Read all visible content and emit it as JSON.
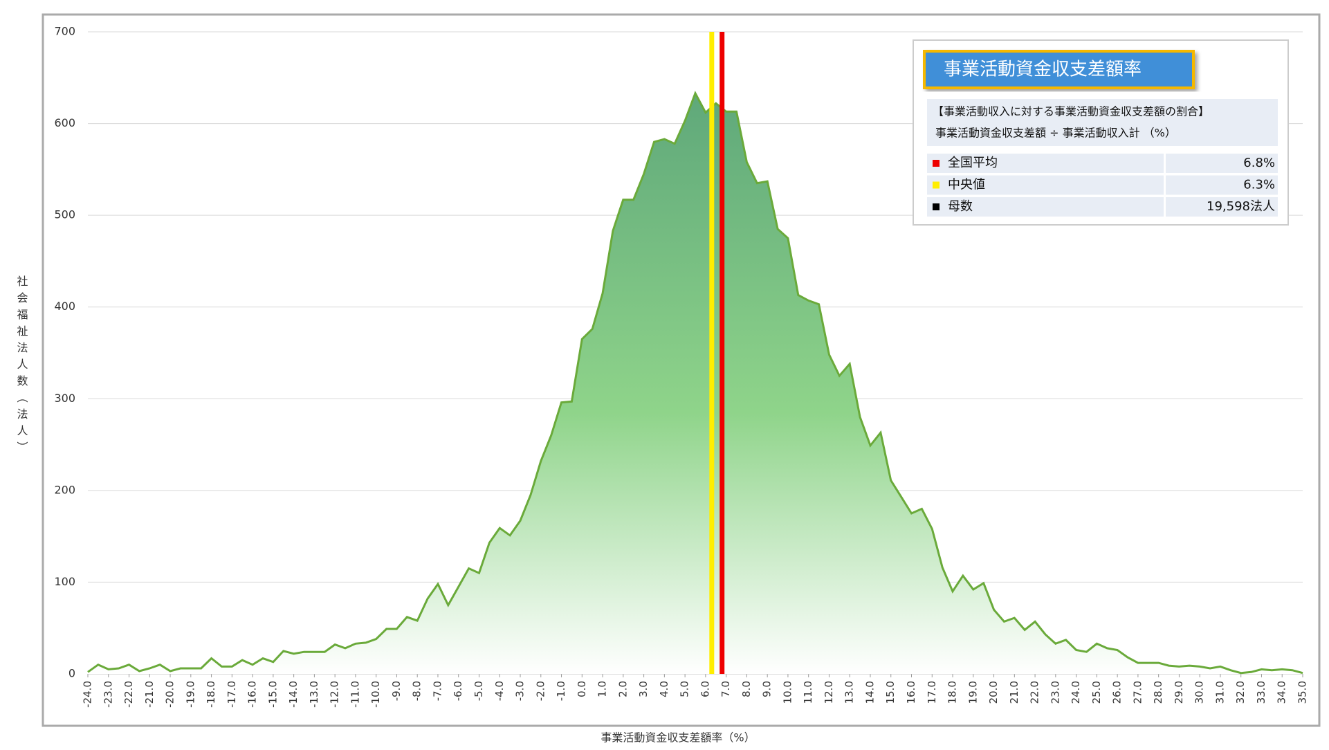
{
  "chart_data": {
    "type": "area",
    "x_label": "事業活動資金収支差額率（%）",
    "y_label": "社会福祉法人数（法人）",
    "x": [
      -24,
      -23.5,
      -23,
      -22.5,
      -22,
      -21.5,
      -21,
      -20.5,
      -20,
      -19.5,
      -19,
      -18.5,
      -18,
      -17.5,
      -17,
      -16.5,
      -16,
      -15.5,
      -15,
      -14.5,
      -14,
      -13.5,
      -13,
      -12.5,
      -12,
      -11.5,
      -11,
      -10.5,
      -10,
      -9.5,
      -9,
      -8.5,
      -8,
      -7.5,
      -7,
      -6.5,
      -6,
      -5.5,
      -5,
      -4.5,
      -4,
      -3.5,
      -3,
      -2.5,
      -2,
      -1.5,
      -1,
      -0.5,
      0,
      0.5,
      1,
      1.5,
      2,
      2.5,
      3,
      3.5,
      4,
      4.5,
      5,
      5.5,
      6,
      6.5,
      7,
      7.5,
      8,
      8.5,
      9,
      9.5,
      10,
      10.5,
      11,
      11.5,
      12,
      12.5,
      13,
      13.5,
      14,
      14.5,
      15,
      15.5,
      16,
      16.5,
      17,
      17.5,
      18,
      18.5,
      19,
      19.5,
      20,
      20.5,
      21,
      21.5,
      22,
      22.5,
      23,
      23.5,
      24,
      24.5,
      25,
      25.5,
      26,
      26.5,
      27,
      27.5,
      28,
      28.5,
      29,
      29.5,
      30,
      30.5,
      31,
      31.5,
      32,
      32.5,
      33,
      33.5,
      34,
      34.5,
      35
    ],
    "series": [
      {
        "color": "#6aaa3a",
        "values": [
          2,
          10,
          5,
          6,
          10,
          3,
          6,
          10,
          3,
          6,
          6,
          6,
          17,
          8,
          8,
          15,
          10,
          17,
          13,
          25,
          22,
          24,
          24,
          24,
          32,
          28,
          33,
          34,
          38,
          49,
          49,
          62,
          58,
          82,
          98,
          75,
          95,
          115,
          110,
          143,
          159,
          151,
          167,
          195,
          232,
          260,
          296,
          297,
          365,
          376,
          415,
          483,
          517,
          517,
          545,
          580,
          583,
          578,
          603,
          633,
          612,
          622,
          613,
          613,
          558,
          535,
          537,
          485,
          475,
          413,
          407,
          403,
          348,
          325,
          338,
          280,
          249,
          263,
          211,
          193,
          175,
          180,
          158,
          116,
          90,
          107,
          92,
          99,
          70,
          57,
          61,
          48,
          57,
          43,
          33,
          37,
          26,
          24,
          33,
          28,
          26,
          18,
          12,
          12,
          12,
          9,
          8,
          9,
          8,
          6,
          8,
          4,
          1,
          2,
          5,
          4,
          5,
          4,
          1
        ]
      }
    ],
    "xlim": [
      -24,
      35
    ],
    "xticks": [
      {
        "value": -24,
        "label": "-24.0"
      },
      {
        "value": -23,
        "label": "-23.0"
      },
      {
        "value": -22,
        "label": "-22.0"
      },
      {
        "value": -21,
        "label": "-21.0"
      },
      {
        "value": -20,
        "label": "-20.0"
      },
      {
        "value": -19,
        "label": "-19.0"
      },
      {
        "value": -18,
        "label": "-18.0"
      },
      {
        "value": -17,
        "label": "-17.0"
      },
      {
        "value": -16,
        "label": "-16.0"
      },
      {
        "value": -15,
        "label": "-15.0"
      },
      {
        "value": -14,
        "label": "-14.0"
      },
      {
        "value": -13,
        "label": "-13.0"
      },
      {
        "value": -12,
        "label": "-12.0"
      },
      {
        "value": -11,
        "label": "-11.0"
      },
      {
        "value": -10,
        "label": "-10.0"
      },
      {
        "value": -9,
        "label": "-9.0"
      },
      {
        "value": -8,
        "label": "-8.0"
      },
      {
        "value": -7,
        "label": "-7.0"
      },
      {
        "value": -6,
        "label": "-6.0"
      },
      {
        "value": -5,
        "label": "-5.0"
      },
      {
        "value": -4,
        "label": "-4.0"
      },
      {
        "value": -3,
        "label": "-3.0"
      },
      {
        "value": -2,
        "label": "-2.0"
      },
      {
        "value": -1,
        "label": "-1.0"
      },
      {
        "value": 0,
        "label": "0.0"
      },
      {
        "value": 1,
        "label": "1.0"
      },
      {
        "value": 2,
        "label": "2.0"
      },
      {
        "value": 3,
        "label": "3.0"
      },
      {
        "value": 4,
        "label": "4.0"
      },
      {
        "value": 5,
        "label": "5.0"
      },
      {
        "value": 6,
        "label": "6.0"
      },
      {
        "value": 7,
        "label": "7.0"
      },
      {
        "value": 8,
        "label": "8.0"
      },
      {
        "value": 9,
        "label": "9.0"
      },
      {
        "value": 10,
        "label": "10.0"
      },
      {
        "value": 11,
        "label": "11.0"
      },
      {
        "value": 12,
        "label": "12.0"
      },
      {
        "value": 13,
        "label": "13.0"
      },
      {
        "value": 14,
        "label": "14.0"
      },
      {
        "value": 15,
        "label": "15.0"
      },
      {
        "value": 16,
        "label": "16.0"
      },
      {
        "value": 17,
        "label": "17.0"
      },
      {
        "value": 18,
        "label": "18.0"
      },
      {
        "value": 19,
        "label": "19.0"
      },
      {
        "value": 20,
        "label": "20.0"
      },
      {
        "value": 21,
        "label": "21.0"
      },
      {
        "value": 22,
        "label": "22.0"
      },
      {
        "value": 23,
        "label": "23.0"
      },
      {
        "value": 24,
        "label": "24.0"
      },
      {
        "value": 25,
        "label": "25.0"
      },
      {
        "value": 26,
        "label": "26.0"
      },
      {
        "value": 27,
        "label": "27.0"
      },
      {
        "value": 28,
        "label": "28.0"
      },
      {
        "value": 29,
        "label": "29.0"
      },
      {
        "value": 30,
        "label": "30.0"
      },
      {
        "value": 31,
        "label": "31.0"
      },
      {
        "value": 32,
        "label": "32.0"
      },
      {
        "value": 33,
        "label": "33.0"
      },
      {
        "value": 34,
        "label": "34.0"
      },
      {
        "value": 35,
        "label": "35.0"
      }
    ],
    "ylim": [
      0,
      700
    ],
    "yticks": [
      0,
      100,
      200,
      300,
      400,
      500,
      600,
      700
    ],
    "grid": true,
    "reference_lines": [
      {
        "name": "全国平均",
        "color": "#ee0000",
        "value": 6.8,
        "value_label": "6.8%"
      },
      {
        "name": "中央値",
        "color": "#ffee00",
        "value": 6.3,
        "value_label": "6.3%"
      }
    ],
    "info_box": {
      "title": "事業活動資金収支差額率",
      "description": [
        "【事業活動収入に対する事業活動資金収支差額の割合】",
        "事業活動資金収支差額 ÷ 事業活動収入計 （%）"
      ],
      "count_row": {
        "name": "母数",
        "label": "19,598法人"
      }
    }
  }
}
